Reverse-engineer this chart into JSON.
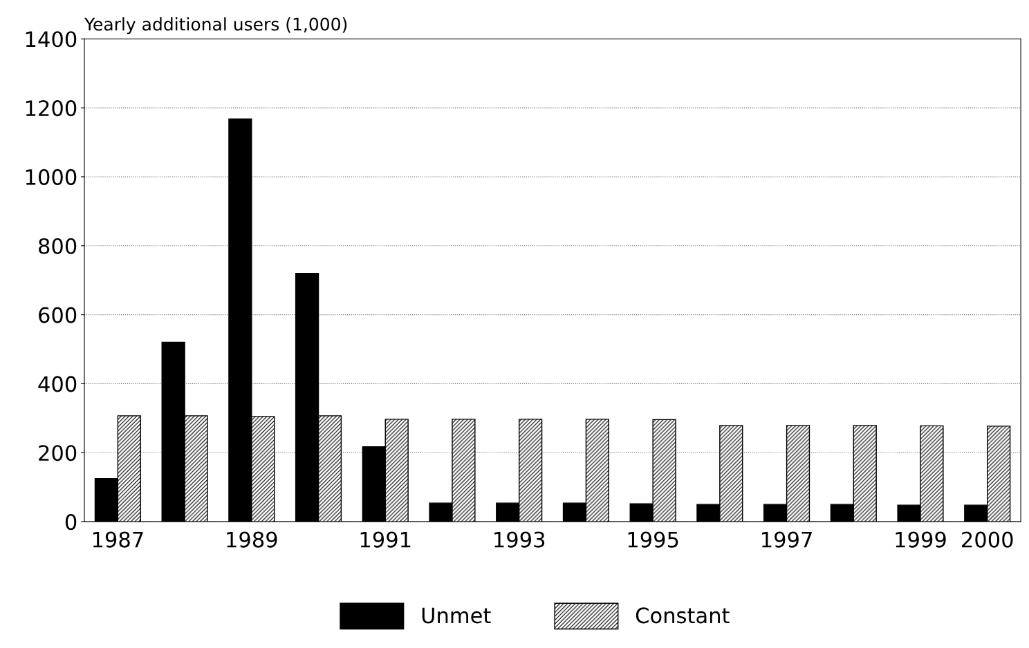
{
  "chart_data": {
    "type": "bar",
    "ylabel": "Yearly additional users (1,000)",
    "categories": [
      "1987",
      null,
      "1989",
      null,
      "1991",
      null,
      "1993",
      null,
      "1995",
      null,
      "1997",
      null,
      "1999",
      "2000"
    ],
    "series": [
      {
        "name": "Unmet",
        "color": "#000000",
        "values": [
          125,
          520,
          1168,
          720,
          217,
          54,
          54,
          54,
          52,
          50,
          50,
          50,
          48,
          48
        ]
      },
      {
        "name": "Constant",
        "color": "#000000",
        "values": [
          307,
          307,
          305,
          307,
          297,
          297,
          297,
          297,
          296,
          279,
          279,
          279,
          278,
          277
        ]
      }
    ],
    "ylim": [
      0,
      1400
    ],
    "yticks": [
      0,
      200,
      400,
      600,
      800,
      1000,
      1200,
      1400
    ],
    "grid": "y",
    "legend": "bottom"
  }
}
